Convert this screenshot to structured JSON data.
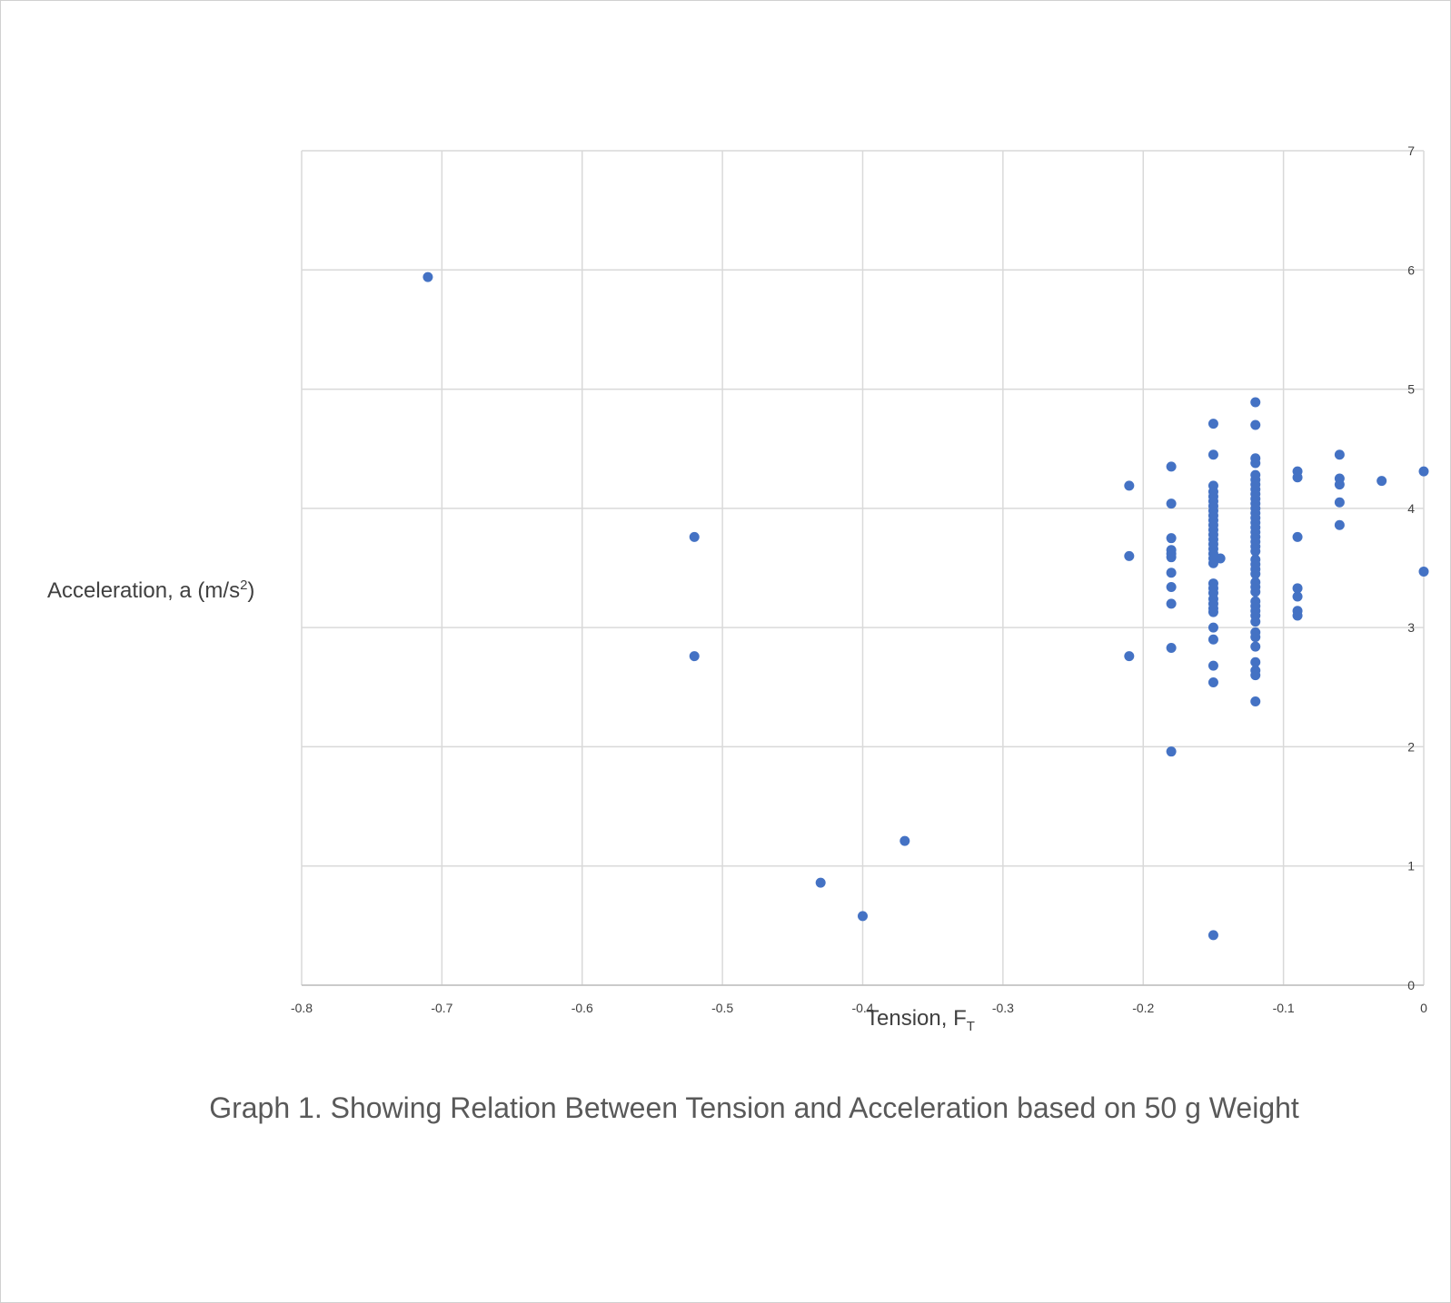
{
  "chart_data": {
    "type": "scatter",
    "title": "Graph 1. Showing Relation Between Tension and Acceleration based on 50 g Weight",
    "xlabel": {
      "text": "Tension,",
      "symbol": "F",
      "subscript": "T"
    },
    "ylabel": {
      "text": "Acceleration, a (m/s",
      "superscript": "2",
      "suffix": ")"
    },
    "xlim": [
      -0.8,
      0
    ],
    "ylim": [
      0,
      7
    ],
    "xticks": [
      "-0.8",
      "-0.7",
      "-0.6",
      "-0.5",
      "-0.4",
      "-0.3",
      "-0.2",
      "-0.1",
      "0"
    ],
    "yticks": [
      "0",
      "1",
      "2",
      "3",
      "4",
      "5",
      "6",
      "7"
    ],
    "y_axis_side": "right",
    "grid": true,
    "legend": "none",
    "marker_color": "#4472C4",
    "series": [
      {
        "points": [
          [
            -0.71,
            5.94
          ],
          [
            -0.52,
            3.76
          ],
          [
            -0.52,
            2.76
          ],
          [
            -0.43,
            0.86
          ],
          [
            -0.4,
            0.58
          ],
          [
            -0.37,
            1.21
          ],
          [
            -0.21,
            4.19
          ],
          [
            -0.21,
            3.6
          ],
          [
            -0.21,
            2.76
          ],
          [
            -0.18,
            4.35
          ],
          [
            -0.18,
            4.04
          ],
          [
            -0.18,
            3.75
          ],
          [
            -0.18,
            3.65
          ],
          [
            -0.18,
            3.62
          ],
          [
            -0.18,
            3.59
          ],
          [
            -0.18,
            3.46
          ],
          [
            -0.18,
            3.34
          ],
          [
            -0.18,
            3.2
          ],
          [
            -0.18,
            2.83
          ],
          [
            -0.18,
            1.96
          ],
          [
            -0.15,
            4.71
          ],
          [
            -0.15,
            4.45
          ],
          [
            -0.15,
            4.19
          ],
          [
            -0.15,
            4.14
          ],
          [
            -0.15,
            4.1
          ],
          [
            -0.15,
            4.06
          ],
          [
            -0.15,
            4.02
          ],
          [
            -0.15,
            3.98
          ],
          [
            -0.15,
            3.94
          ],
          [
            -0.15,
            3.9
          ],
          [
            -0.15,
            3.86
          ],
          [
            -0.15,
            3.82
          ],
          [
            -0.15,
            3.78
          ],
          [
            -0.15,
            3.74
          ],
          [
            -0.15,
            3.7
          ],
          [
            -0.15,
            3.66
          ],
          [
            -0.15,
            3.62
          ],
          [
            -0.15,
            3.58
          ],
          [
            -0.15,
            3.54
          ],
          [
            -0.15,
            3.37
          ],
          [
            -0.15,
            3.33
          ],
          [
            -0.15,
            3.29
          ],
          [
            -0.15,
            3.24
          ],
          [
            -0.15,
            3.2
          ],
          [
            -0.15,
            3.16
          ],
          [
            -0.15,
            3.13
          ],
          [
            -0.15,
            3.0
          ],
          [
            -0.15,
            2.9
          ],
          [
            -0.15,
            2.68
          ],
          [
            -0.15,
            2.54
          ],
          [
            -0.15,
            0.42
          ],
          [
            -0.145,
            3.58
          ],
          [
            -0.12,
            4.89
          ],
          [
            -0.12,
            4.7
          ],
          [
            -0.12,
            4.42
          ],
          [
            -0.12,
            4.38
          ],
          [
            -0.12,
            4.28
          ],
          [
            -0.12,
            4.24
          ],
          [
            -0.12,
            4.2
          ],
          [
            -0.12,
            4.16
          ],
          [
            -0.12,
            4.12
          ],
          [
            -0.12,
            4.08
          ],
          [
            -0.12,
            4.04
          ],
          [
            -0.12,
            4.0
          ],
          [
            -0.12,
            3.96
          ],
          [
            -0.12,
            3.92
          ],
          [
            -0.12,
            3.88
          ],
          [
            -0.12,
            3.84
          ],
          [
            -0.12,
            3.8
          ],
          [
            -0.12,
            3.76
          ],
          [
            -0.12,
            3.72
          ],
          [
            -0.12,
            3.68
          ],
          [
            -0.12,
            3.64
          ],
          [
            -0.12,
            3.57
          ],
          [
            -0.12,
            3.53
          ],
          [
            -0.12,
            3.49
          ],
          [
            -0.12,
            3.45
          ],
          [
            -0.12,
            3.38
          ],
          [
            -0.12,
            3.34
          ],
          [
            -0.12,
            3.3
          ],
          [
            -0.12,
            3.22
          ],
          [
            -0.12,
            3.18
          ],
          [
            -0.12,
            3.14
          ],
          [
            -0.12,
            3.1
          ],
          [
            -0.12,
            3.05
          ],
          [
            -0.12,
            2.96
          ],
          [
            -0.12,
            2.92
          ],
          [
            -0.12,
            2.84
          ],
          [
            -0.12,
            2.71
          ],
          [
            -0.12,
            2.64
          ],
          [
            -0.12,
            2.6
          ],
          [
            -0.12,
            2.38
          ],
          [
            -0.09,
            4.31
          ],
          [
            -0.09,
            4.26
          ],
          [
            -0.09,
            3.76
          ],
          [
            -0.09,
            3.33
          ],
          [
            -0.09,
            3.26
          ],
          [
            -0.09,
            3.14
          ],
          [
            -0.09,
            3.1
          ],
          [
            -0.06,
            4.45
          ],
          [
            -0.06,
            4.25
          ],
          [
            -0.06,
            4.2
          ],
          [
            -0.06,
            4.05
          ],
          [
            -0.06,
            3.86
          ],
          [
            -0.03,
            4.23
          ],
          [
            0.0,
            4.31
          ],
          [
            0.0,
            3.47
          ]
        ]
      }
    ]
  }
}
